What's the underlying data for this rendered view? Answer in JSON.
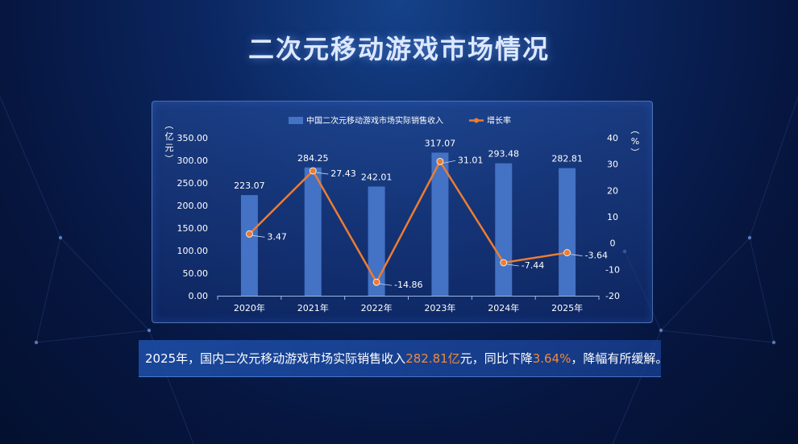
{
  "title": "二次元移动游戏市场情况",
  "summary": {
    "part1": "2025年，国内二次元移动游戏市场实际销售收入",
    "value1": "282.81亿",
    "part2": "元，同比下降",
    "value2": "3.64%",
    "part3": "，降幅有所缓解。"
  },
  "colors": {
    "bar": "#4472c4",
    "line": "#ed7d31",
    "text": "#ffffff"
  },
  "chart_data": {
    "type": "bar+line",
    "categories": [
      "2020年",
      "2021年",
      "2022年",
      "2023年",
      "2024年",
      "2025年"
    ],
    "series": [
      {
        "name": "中国二次元移动游戏市场实际销售收入",
        "type": "bar",
        "axis": "left",
        "values": [
          223.07,
          284.25,
          242.01,
          317.07,
          293.48,
          282.81
        ],
        "labels": [
          "223.07",
          "284.25",
          "242.01",
          "317.07",
          "293.48",
          "282.81"
        ]
      },
      {
        "name": "增长率",
        "type": "line",
        "axis": "right",
        "values": [
          3.47,
          27.43,
          -14.86,
          31.01,
          -7.44,
          -3.64
        ],
        "labels": [
          "3.47",
          "27.43",
          "-14.86",
          "31.01",
          "-7.44",
          "-3.64"
        ]
      }
    ],
    "y_left": {
      "label": "（亿元）",
      "ylim": [
        0,
        350
      ],
      "ticks": [
        "0.00",
        "50.00",
        "100.00",
        "150.00",
        "200.00",
        "250.00",
        "300.00",
        "350.00"
      ]
    },
    "y_right": {
      "label": "（%）",
      "ylim": [
        -20,
        40
      ],
      "ticks": [
        "-20",
        "-10",
        "0",
        "10",
        "20",
        "30",
        "40"
      ]
    },
    "legend": "top-center"
  }
}
